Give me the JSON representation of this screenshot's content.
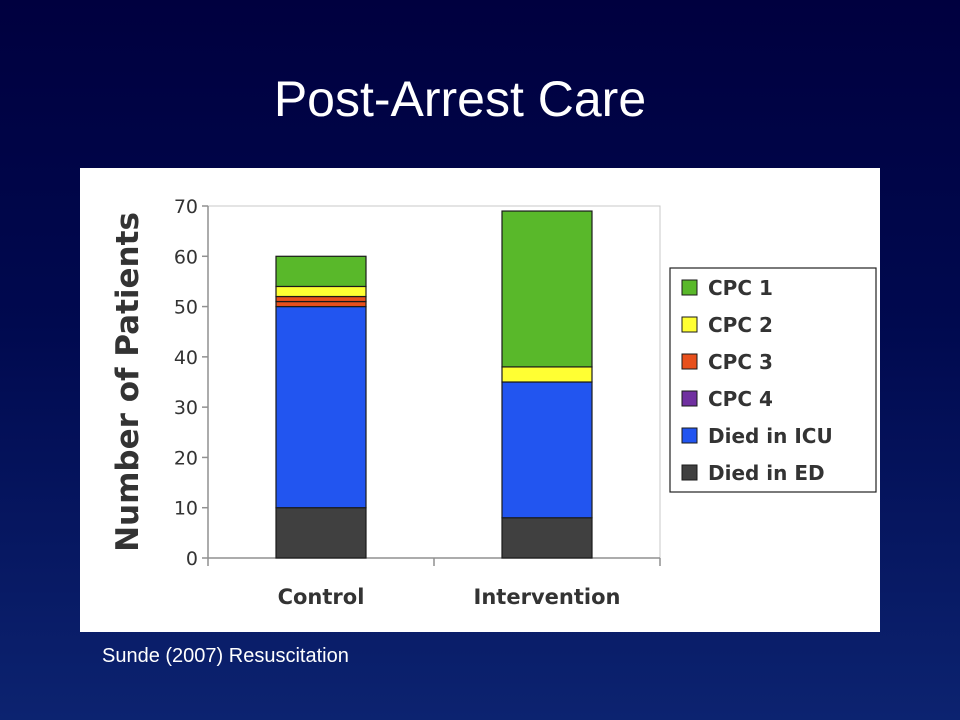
{
  "slide": {
    "title": "Post-Arrest Care",
    "citation": "Sunde (2007) Resuscitation"
  },
  "chart_data": {
    "type": "bar",
    "stacked": true,
    "categories": [
      "Control",
      "Intervention"
    ],
    "ylabel": "Number of Patients",
    "xlabel": "",
    "ylim": [
      0,
      70
    ],
    "yticks": [
      0,
      10,
      20,
      30,
      40,
      50,
      60,
      70
    ],
    "grid": false,
    "legend_position": "right",
    "series": [
      {
        "name": "Died in ED",
        "color": "#404040",
        "values": [
          10,
          8
        ]
      },
      {
        "name": "Died in ICU",
        "color": "#2255f0",
        "values": [
          40,
          27
        ]
      },
      {
        "name": "CPC 4",
        "color": "#7030a0",
        "values": [
          0,
          0
        ]
      },
      {
        "name": "CPC 3",
        "color": "#e8501c",
        "values": [
          1,
          0
        ]
      },
      {
        "name": "CPC 2",
        "color": "#ffff33",
        "values": [
          2,
          3
        ]
      },
      {
        "name": "CPC 1",
        "color": "#59b82a",
        "values": [
          6,
          31
        ]
      }
    ],
    "extra_segments": [
      {
        "category": "Control",
        "after_series": "CPC 3",
        "color": "#e8501c",
        "value": 1
      },
      {
        "category": "Control",
        "after_series": "CPC 3b",
        "color": "#e8501c",
        "value": 0
      }
    ],
    "legend_order": [
      "CPC 1",
      "CPC 2",
      "CPC 3",
      "CPC 4",
      "Died in ICU",
      "Died in ED"
    ]
  }
}
